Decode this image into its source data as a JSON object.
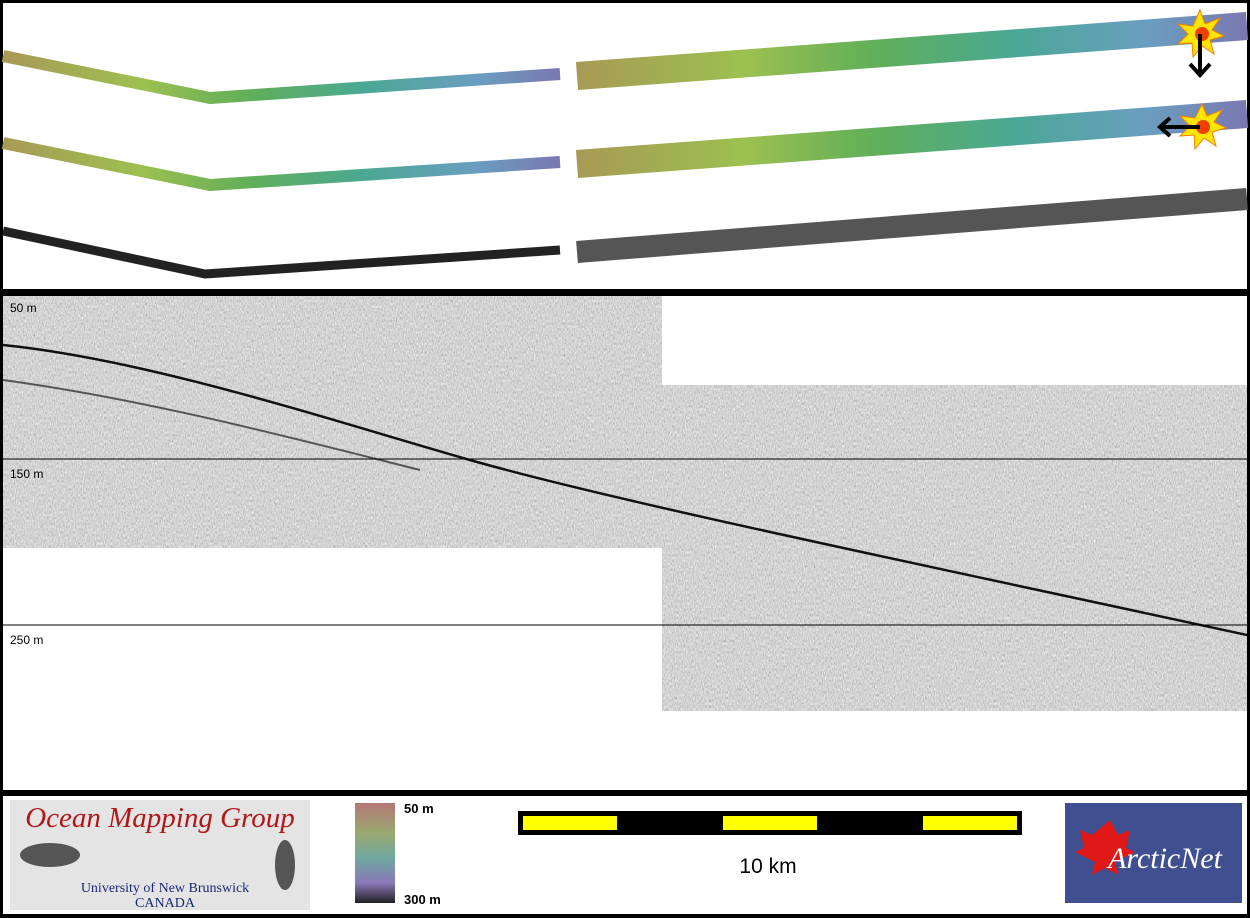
{
  "profile": {
    "depth_labels": [
      "50 m",
      "150 m",
      "250 m"
    ]
  },
  "logos": {
    "omg": {
      "title": "Ocean Mapping Group",
      "subtitle": "University of New Brunswick",
      "country": "CANADA"
    },
    "arcticnet": "ArcticNet"
  },
  "colorbar": {
    "top": "50 m",
    "bottom": "300 m"
  },
  "scale_bar": {
    "label": "10 km"
  }
}
